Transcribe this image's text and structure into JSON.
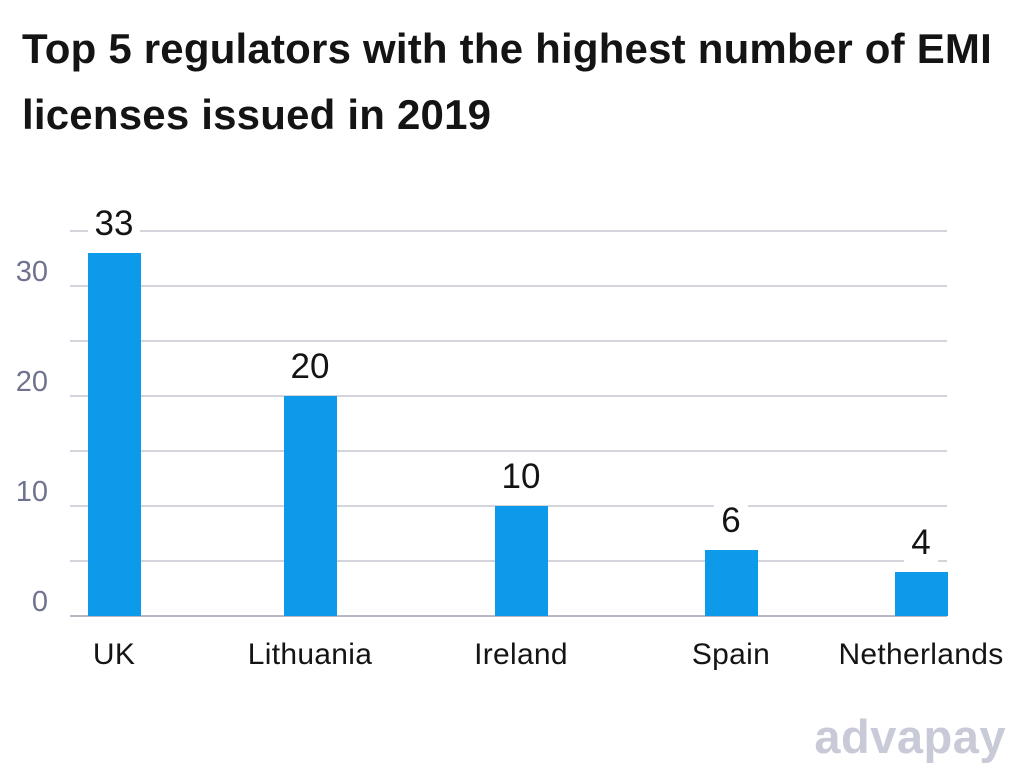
{
  "title": "Top 5 regulators with the highest number of EMI licenses issued in 2019",
  "watermark": "advapay",
  "colors": {
    "bar": "#0E9AEA",
    "gridline": "#D3D4DC",
    "zero_line": "#B7BAC4",
    "axis_tick_label": "#70738F",
    "text": "#141414",
    "watermark": "#C8CAD8",
    "background": "#FFFFFF"
  },
  "chart_data": {
    "type": "bar",
    "title": "Top 5 regulators with the highest number of EMI licenses issued in 2019",
    "categories": [
      "UK",
      "Lithuania",
      "Ireland",
      "Spain",
      "Netherlands"
    ],
    "values": [
      33,
      20,
      10,
      6,
      4
    ],
    "data_labels": [
      "33",
      "20",
      "10",
      "6",
      "4"
    ],
    "xlabel": "",
    "ylabel": "",
    "ylim": [
      0,
      35
    ],
    "yticks": [
      0,
      10,
      20,
      30
    ],
    "gridline_step": 5,
    "grid": true,
    "legend": false,
    "bar_color": "#0E9AEA"
  }
}
